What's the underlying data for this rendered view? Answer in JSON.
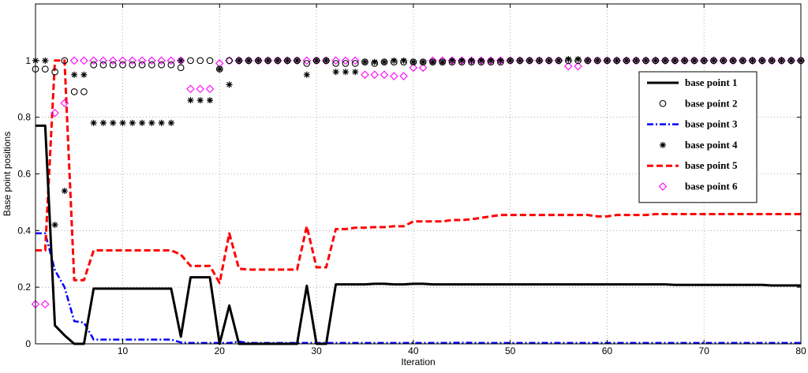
{
  "chart_data": {
    "type": "line",
    "title": "",
    "xlabel": "Iteration",
    "ylabel": "Base point positions",
    "xlim": [
      1,
      80
    ],
    "ylim": [
      0,
      1.2
    ],
    "xticks": [
      10,
      20,
      30,
      40,
      50,
      60,
      70,
      80
    ],
    "yticks": [
      0,
      0.2,
      0.4,
      0.6,
      0.8,
      1
    ],
    "grid": true,
    "legend_position": "right",
    "x": [
      1,
      2,
      3,
      4,
      5,
      6,
      7,
      8,
      9,
      10,
      11,
      12,
      13,
      14,
      15,
      16,
      17,
      18,
      19,
      20,
      21,
      22,
      23,
      24,
      25,
      26,
      27,
      28,
      29,
      30,
      31,
      32,
      33,
      34,
      35,
      36,
      37,
      38,
      39,
      40,
      41,
      42,
      43,
      44,
      45,
      46,
      47,
      48,
      49,
      50,
      51,
      52,
      53,
      54,
      55,
      56,
      57,
      58,
      59,
      60,
      61,
      62,
      63,
      64,
      65,
      66,
      67,
      68,
      69,
      70,
      71,
      72,
      73,
      74,
      75,
      76,
      77,
      78,
      79,
      80
    ],
    "series": [
      {
        "name": "base point 1",
        "style": "line-solid",
        "color": "#000000",
        "values": [
          0.77,
          0.77,
          0.065,
          0.03,
          0,
          0,
          0.195,
          0.195,
          0.195,
          0.195,
          0.195,
          0.195,
          0.195,
          0.195,
          0.195,
          0.025,
          0.235,
          0.235,
          0.235,
          0,
          0.135,
          0,
          0,
          0,
          0,
          0,
          0,
          0,
          0.205,
          0,
          0,
          0.21,
          0.21,
          0.21,
          0.21,
          0.212,
          0.212,
          0.21,
          0.21,
          0.212,
          0.212,
          0.21,
          0.21,
          0.21,
          0.21,
          0.21,
          0.21,
          0.21,
          0.21,
          0.21,
          0.21,
          0.21,
          0.21,
          0.21,
          0.21,
          0.21,
          0.21,
          0.21,
          0.21,
          0.21,
          0.21,
          0.21,
          0.21,
          0.21,
          0.21,
          0.21,
          0.208,
          0.208,
          0.208,
          0.208,
          0.208,
          0.208,
          0.208,
          0.208,
          0.208,
          0.208,
          0.206,
          0.206,
          0.206,
          0.206
        ]
      },
      {
        "name": "base point 2",
        "style": "marker-circle",
        "color": "#000000",
        "values": [
          0.97,
          0.97,
          0.96,
          1.0,
          0.89,
          0.89,
          0.985,
          0.985,
          0.985,
          0.985,
          0.985,
          0.985,
          0.985,
          0.985,
          0.985,
          0.975,
          1.0,
          1.0,
          1.0,
          0.97,
          1.0,
          1.0,
          1.0,
          1.0,
          1.0,
          1.0,
          1.0,
          1.0,
          0.99,
          1.0,
          1.0,
          0.99,
          0.99,
          0.99,
          0.995,
          0.99,
          0.995,
          0.995,
          0.995,
          0.995,
          0.995,
          0.995,
          0.995,
          0.995,
          0.995,
          0.995,
          0.995,
          0.995,
          0.995,
          1.0,
          1.0,
          1.0,
          1.0,
          1.0,
          1.0,
          1.0,
          1.0,
          1.0,
          1.0,
          1.0,
          1.0,
          1.0,
          1.0,
          1.0,
          1.0,
          1.0,
          1.0,
          1.0,
          1.0,
          1.0,
          1.0,
          1.0,
          1.0,
          1.0,
          1.0,
          1.0,
          1.0,
          1.0,
          1.0,
          1.0
        ]
      },
      {
        "name": "base point 3",
        "style": "line-dashdot",
        "color": "#0000ff",
        "values": [
          0.39,
          0.39,
          0.26,
          0.2,
          0.08,
          0.075,
          0.015,
          0.015,
          0.015,
          0.015,
          0.015,
          0.015,
          0.015,
          0.015,
          0.015,
          0.005,
          0.003,
          0.003,
          0.003,
          0.003,
          0.003,
          0.008,
          0.003,
          0.003,
          0.003,
          0.003,
          0.003,
          0.003,
          0.003,
          0.003,
          0.003,
          0.003,
          0.003,
          0.003,
          0.003,
          0.003,
          0.003,
          0.003,
          0.003,
          0.003,
          0.003,
          0.003,
          0.003,
          0.004,
          0.004,
          0.004,
          0.003,
          0.003,
          0.003,
          0.003,
          0.003,
          0.003,
          0.003,
          0.003,
          0.003,
          0.003,
          0.003,
          0.003,
          0.003,
          0.003,
          0.003,
          0.003,
          0.003,
          0.003,
          0.003,
          0.003,
          0.003,
          0.003,
          0.003,
          0.003,
          0.003,
          0.003,
          0.003,
          0.003,
          0.003,
          0.003,
          0.003,
          0.003,
          0.003,
          0.003
        ]
      },
      {
        "name": "base point 4",
        "style": "marker-asterisk",
        "color": "#000000",
        "values": [
          1.0,
          1.0,
          0.42,
          0.54,
          0.95,
          0.95,
          0.78,
          0.78,
          0.78,
          0.78,
          0.78,
          0.78,
          0.78,
          0.78,
          0.78,
          1.0,
          0.86,
          0.86,
          0.86,
          0.97,
          0.915,
          1.0,
          1.0,
          1.0,
          1.0,
          1.0,
          1.0,
          1.0,
          0.95,
          1.0,
          1.0,
          0.96,
          0.96,
          0.96,
          0.995,
          0.995,
          0.995,
          1.0,
          1.0,
          0.995,
          0.995,
          0.995,
          0.995,
          1.0,
          1.0,
          1.0,
          1.0,
          1.0,
          1.0,
          1.0,
          1.0,
          1.0,
          1.0,
          1.0,
          1.0,
          1.005,
          1.005,
          1.0,
          1.0,
          1.0,
          1.0,
          1.0,
          1.0,
          1.0,
          1.0,
          1.0,
          1.0,
          1.0,
          1.0,
          1.0,
          1.0,
          1.0,
          1.0,
          1.0,
          1.0,
          1.0,
          1.0,
          1.0,
          1.0,
          1.0
        ]
      },
      {
        "name": "base point 5",
        "style": "line-dashed",
        "color": "#ff0000",
        "values": [
          0.33,
          0.33,
          1.0,
          1.0,
          0.225,
          0.225,
          0.33,
          0.33,
          0.33,
          0.33,
          0.33,
          0.33,
          0.33,
          0.33,
          0.33,
          0.315,
          0.275,
          0.275,
          0.275,
          0.215,
          0.39,
          0.265,
          0.262,
          0.262,
          0.262,
          0.262,
          0.262,
          0.262,
          0.415,
          0.27,
          0.27,
          0.405,
          0.405,
          0.41,
          0.41,
          0.412,
          0.412,
          0.415,
          0.415,
          0.432,
          0.432,
          0.432,
          0.432,
          0.437,
          0.437,
          0.44,
          0.445,
          0.45,
          0.455,
          0.455,
          0.455,
          0.455,
          0.455,
          0.455,
          0.455,
          0.455,
          0.455,
          0.455,
          0.45,
          0.45,
          0.455,
          0.455,
          0.455,
          0.455,
          0.458,
          0.458,
          0.458,
          0.458,
          0.458,
          0.458,
          0.458,
          0.458,
          0.458,
          0.458,
          0.458,
          0.458,
          0.458,
          0.458,
          0.458,
          0.458
        ]
      },
      {
        "name": "base point 6",
        "style": "marker-diamond",
        "color": "#ff00ff",
        "values": [
          0.14,
          0.14,
          0.815,
          0.85,
          1.0,
          1.0,
          1.0,
          1.0,
          1.0,
          1.0,
          1.0,
          1.0,
          1.0,
          1.0,
          1.0,
          1.0,
          0.9,
          0.9,
          0.9,
          0.99,
          1.0,
          1.0,
          1.0,
          1.0,
          1.0,
          1.0,
          1.0,
          1.0,
          1.0,
          1.0,
          1.0,
          1.0,
          1.0,
          1.0,
          0.95,
          0.95,
          0.95,
          0.945,
          0.945,
          0.975,
          0.975,
          1.0,
          1.0,
          1.0,
          1.0,
          1.0,
          1.0,
          1.0,
          1.0,
          1.0,
          1.0,
          1.0,
          1.0,
          1.0,
          1.0,
          0.98,
          0.98,
          1.0,
          1.0,
          1.0,
          1.0,
          1.0,
          1.0,
          1.0,
          1.0,
          1.0,
          1.0,
          1.0,
          1.0,
          1.0,
          1.0,
          1.0,
          1.0,
          1.0,
          1.0,
          1.0,
          1.0,
          1.0,
          1.0,
          1.0
        ]
      }
    ]
  }
}
